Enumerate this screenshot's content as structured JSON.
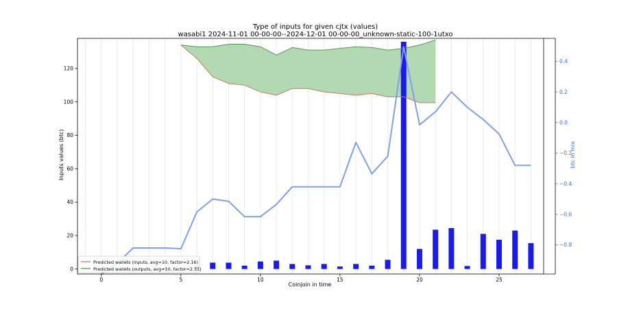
{
  "chart_data": {
    "type": "bar",
    "title": "Type of inputs for given cjtx (values)",
    "subtitle": "wasabi1 2024-11-01 00-00-00--2024-12-01 00-00-00_unknown-static-100-1utxo",
    "xlabel": "Coinjoin in time",
    "ylabel": "Inputs values (btc)",
    "ylabel_right": "btc in mix",
    "xlim": [
      -1.5,
      27.8
    ],
    "ylim": [
      -3,
      138
    ],
    "ylim_right": [
      -0.99,
      0.55
    ],
    "grid_x": true,
    "grid_y": false,
    "legend_position": "lower-left",
    "x_ticks": [
      0,
      5,
      10,
      15,
      20,
      25
    ],
    "x_tick_labels": [
      "0",
      "5",
      "10",
      "15",
      "20",
      "25"
    ],
    "y_ticks": [
      0,
      20,
      40,
      60,
      80,
      100,
      120
    ],
    "y_tick_labels": [
      "0",
      "20",
      "40",
      "60",
      "80",
      "100",
      "120"
    ],
    "y_right_ticks": [
      -0.8,
      -0.6,
      -0.4,
      -0.2,
      0.0,
      0.2,
      0.4
    ],
    "y_right_tick_labels": [
      "−0.8",
      "−0.6",
      "−0.4",
      "−0.2",
      "0.0",
      "0.2",
      "0.4"
    ],
    "colors": {
      "bars": "#1a1aee",
      "mix_line": "#7f9fe8",
      "inputs_line": "#d9735a",
      "outputs_line": "#4f9a4f",
      "fill": "#b2d9b2",
      "right_axis": "#3a6fd8"
    },
    "series": [
      {
        "name": "Predicted wallets (inputs, avg=10, factor=2.16)",
        "role": "inputs",
        "x": [
          5,
          6,
          7,
          8,
          9,
          10,
          11,
          12,
          13,
          14,
          15,
          16,
          17,
          18,
          19,
          20,
          21
        ],
        "values": [
          134,
          126,
          115,
          111,
          110,
          106,
          104,
          108,
          108,
          106,
          105,
          104,
          105,
          103,
          103,
          99.5,
          99.5
        ]
      },
      {
        "name": "Predicted wallets (outputs, avg=10, factor=2.31)",
        "role": "outputs",
        "x": [
          5,
          6,
          7,
          8,
          9,
          10,
          11,
          12,
          13,
          14,
          15,
          16,
          17,
          18,
          19,
          20,
          21
        ],
        "values": [
          134,
          133,
          133,
          134.5,
          134.5,
          133,
          128,
          132.5,
          131,
          131,
          132,
          133,
          132.5,
          131,
          132,
          134,
          137
        ]
      },
      {
        "role": "bars",
        "x": [
          0,
          1,
          2,
          3,
          4,
          5,
          6,
          7,
          8,
          9,
          10,
          11,
          12,
          13,
          14,
          15,
          16,
          17,
          18,
          19,
          20,
          21,
          22,
          23,
          24,
          25,
          26,
          27
        ],
        "values": [
          0,
          0,
          0,
          0,
          0.8,
          0,
          1.5,
          3.8,
          3.8,
          2,
          4.5,
          5,
          3,
          2.2,
          3,
          1.5,
          3,
          2,
          5.5,
          136,
          12,
          23.5,
          24.5,
          1.8,
          21,
          17.5,
          23,
          15.5
        ]
      },
      {
        "role": "mix",
        "axis": "right",
        "x": [
          0,
          1,
          2,
          3,
          4,
          5,
          6,
          7,
          8,
          9,
          10,
          11,
          12,
          13,
          14,
          15,
          16,
          17,
          18,
          19,
          20,
          21,
          22,
          23,
          24,
          25,
          26,
          27
        ],
        "values": [
          -0.99,
          -0.92,
          -0.82,
          -0.82,
          -0.82,
          -0.825,
          -0.585,
          -0.5,
          -0.515,
          -0.615,
          -0.615,
          -0.535,
          -0.42,
          -0.42,
          -0.42,
          -0.42,
          -0.13,
          -0.335,
          -0.22,
          0.495,
          -0.015,
          0.07,
          0.2,
          0.1,
          0.02,
          -0.075,
          -0.28,
          -0.28
        ]
      }
    ]
  }
}
